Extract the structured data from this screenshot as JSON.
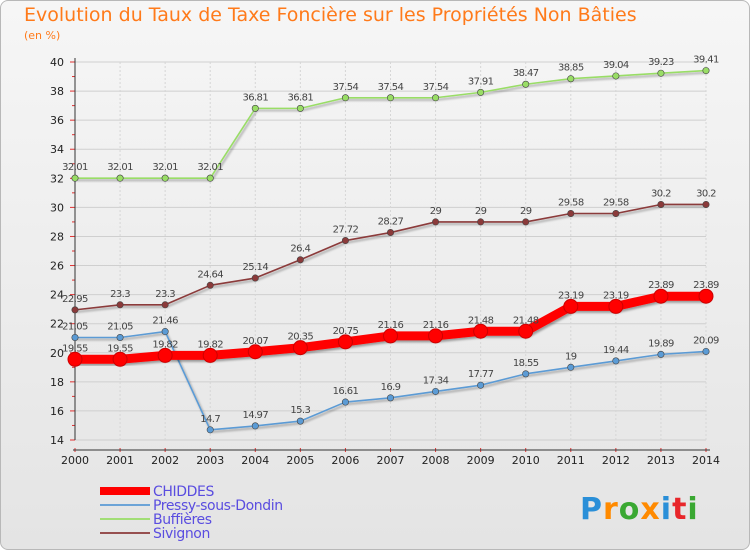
{
  "title": "Evolution du Taux de Taxe Foncière sur les Propriétés Non Bâties",
  "unit": "(en %)",
  "logo": {
    "text": "Proxiti",
    "colors": [
      "#2a8fd8",
      "#ff8a00",
      "#3aa832",
      "#ff8a00",
      "#2a8fd8",
      "#e8262a",
      "#3aa832"
    ]
  },
  "chart_data": {
    "type": "line",
    "x": [
      2000,
      2001,
      2002,
      2003,
      2004,
      2005,
      2006,
      2007,
      2008,
      2009,
      2010,
      2011,
      2012,
      2013,
      2014
    ],
    "ylim": [
      14,
      40
    ],
    "yticks": [
      14,
      16,
      18,
      20,
      22,
      24,
      26,
      28,
      30,
      32,
      34,
      36,
      38,
      40
    ],
    "ylabel": "(en %)",
    "xlabel": "",
    "grid": true,
    "legend": "bottom-left",
    "series": [
      {
        "name": "CHIDDES",
        "color": "#ff0000",
        "values": [
          19.55,
          19.55,
          19.82,
          19.82,
          20.07,
          20.35,
          20.75,
          21.16,
          21.16,
          21.48,
          21.48,
          23.19,
          23.19,
          23.89,
          23.89
        ],
        "labels": [
          "19.55",
          "19.55",
          "19.82",
          "19.82",
          "20.07",
          "20.35",
          "20.75",
          "21.16",
          "21.16",
          "21.48",
          "21.48",
          "23.19",
          "23.19",
          "23.89",
          "23.89"
        ]
      },
      {
        "name": "Pressy-sous-Dondin",
        "color": "#5b9bd5",
        "values": [
          21.05,
          21.05,
          21.46,
          14.7,
          14.97,
          15.3,
          16.61,
          16.9,
          17.34,
          17.77,
          18.55,
          19,
          19.44,
          19.89,
          20.09
        ],
        "labels": [
          "21.05",
          "21.05",
          "21.46",
          "14.7",
          "14.97",
          "15.3",
          "16.61",
          "16.9",
          "17.34",
          "17.77",
          "18.55",
          "19",
          "19.44",
          "19.89",
          "20.09"
        ]
      },
      {
        "name": "Buffières",
        "color": "#99dd66",
        "values": [
          32.01,
          32.01,
          32.01,
          32.01,
          36.81,
          36.81,
          37.54,
          37.54,
          37.54,
          37.91,
          38.47,
          38.85,
          39.04,
          39.23,
          39.41
        ],
        "labels": [
          "32.01",
          "32.01",
          "32.01",
          "32.01",
          "36.81",
          "36.81",
          "37.54",
          "37.54",
          "37.54",
          "37.91",
          "38.47",
          "38.85",
          "39.04",
          "39.23",
          "39.41"
        ]
      },
      {
        "name": "Sivignon",
        "color": "#8b3a3a",
        "values": [
          22.95,
          23.3,
          23.3,
          24.64,
          25.14,
          26.4,
          27.72,
          28.27,
          29,
          29,
          29,
          29.58,
          29.58,
          30.2,
          30.2
        ],
        "labels": [
          "22.95",
          "23.3",
          "23.3",
          "24.64",
          "25.14",
          "26.4",
          "27.72",
          "28.27",
          "29",
          "29",
          "29",
          "29.58",
          "29.58",
          "30.2",
          "30.2"
        ]
      }
    ]
  }
}
